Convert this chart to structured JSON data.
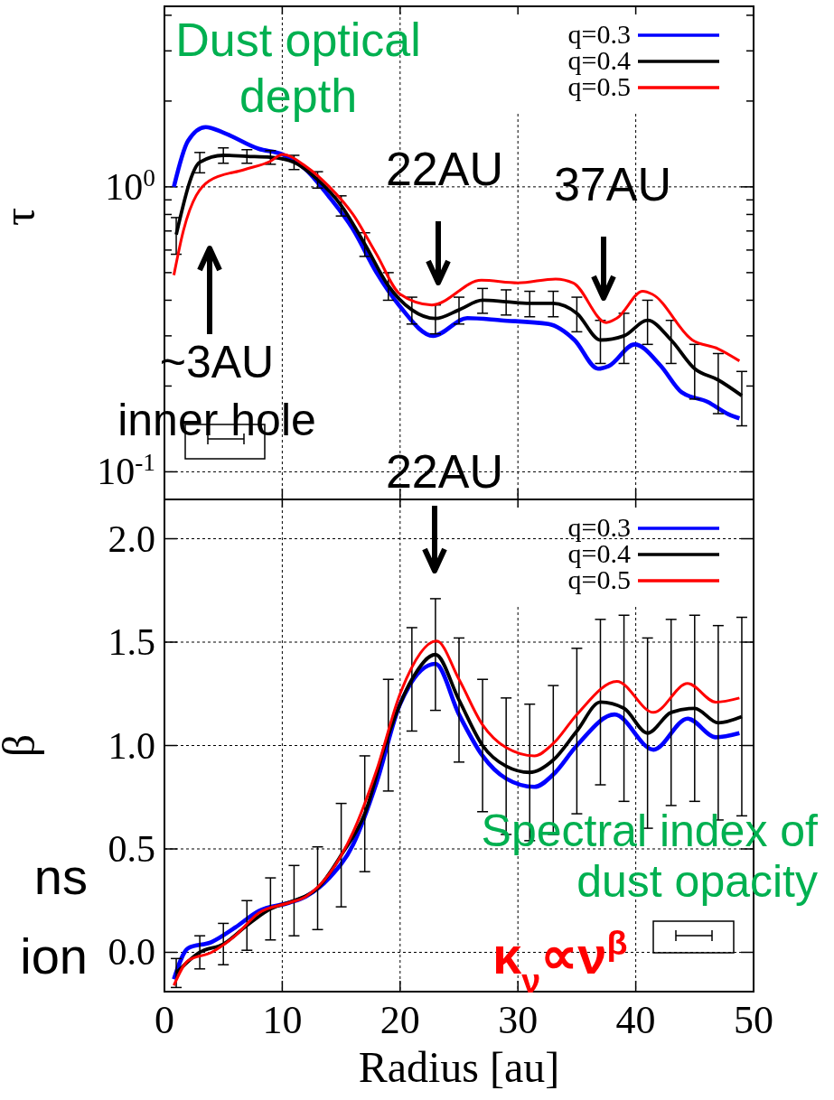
{
  "chart_data": [
    {
      "type": "line",
      "ylabel": "τ",
      "log": "y",
      "grid": true,
      "legend": "top right",
      "tick_labels": "y",
      "xlim": [
        0,
        50
      ],
      "xticks": [
        0,
        10,
        20,
        30,
        40,
        50
      ],
      "ylim": [
        0.08,
        4.3
      ],
      "yticks": [
        {
          "value": 0.1,
          "label": "10$^{-1}$"
        },
        {
          "value": 0.2,
          "label": null
        },
        {
          "value": 0.3,
          "label": null
        },
        {
          "value": 0.4,
          "label": null
        },
        {
          "value": 0.5,
          "label": null
        },
        {
          "value": 0.6,
          "label": null
        },
        {
          "value": 0.7,
          "label": null
        },
        {
          "value": 0.8,
          "label": null
        },
        {
          "value": 0.9,
          "label": null
        },
        {
          "value": 1,
          "label": "10$^{0}$"
        },
        {
          "value": 2,
          "label": null
        },
        {
          "value": 3,
          "label": null
        },
        {
          "value": 4,
          "label": null
        }
      ],
      "series": [
        {
          "name": "q=0.3",
          "color": "#0000ff",
          "x": [
            0.8,
            2,
            3.5,
            5,
            8,
            10,
            12,
            14,
            16,
            18,
            20,
            22.8,
            25.7,
            28.6,
            32.6,
            34.8,
            36.8,
            37.7,
            39.9,
            42.1,
            43.9,
            46.1,
            47.9,
            48.8
          ],
          "values": [
            1.0,
            1.45,
            1.62,
            1.55,
            1.36,
            1.3,
            1.15,
            0.92,
            0.71,
            0.5,
            0.38,
            0.3,
            0.346,
            0.34,
            0.33,
            0.29,
            0.23,
            0.235,
            0.28,
            0.236,
            0.19,
            0.176,
            0.159,
            0.154
          ]
        },
        {
          "name": "q=0.4",
          "color": "#000000",
          "x": [
            1,
            3,
            5,
            7,
            9,
            11,
            13,
            15,
            17,
            19,
            21,
            23,
            25,
            27,
            29,
            31,
            33,
            35,
            37,
            39,
            41,
            43,
            45,
            47,
            49
          ],
          "values": [
            0.68,
            1.22,
            1.29,
            1.28,
            1.27,
            1.22,
            1.06,
            0.86,
            0.63,
            0.45,
            0.37,
            0.345,
            0.37,
            0.4,
            0.395,
            0.39,
            0.39,
            0.36,
            0.29,
            0.3,
            0.34,
            0.29,
            0.23,
            0.21,
            0.185
          ],
          "errors": [
            0.1,
            0.1,
            0.08,
            0.07,
            0.07,
            0.07,
            0.07,
            0.07,
            0.06,
            0.05,
            0.04,
            0.04,
            0.04,
            0.04,
            0.04,
            0.04,
            0.04,
            0.05,
            0.05,
            0.06,
            0.06,
            0.05,
            0.05,
            0.05,
            0.04
          ]
        },
        {
          "name": "q=0.5",
          "color": "#ff0000",
          "x": [
            0.8,
            1.6,
            3.8,
            6.8,
            9,
            10,
            12,
            14,
            16,
            18,
            20,
            22.7,
            26.9,
            30,
            33.2,
            34.7,
            37.5,
            38.4,
            40.6,
            41.4,
            44.8,
            47,
            48.8
          ],
          "values": [
            0.49,
            0.7,
            1.05,
            1.15,
            1.23,
            1.3,
            1.18,
            1.0,
            0.8,
            0.58,
            0.42,
            0.385,
            0.47,
            0.46,
            0.475,
            0.46,
            0.334,
            0.346,
            0.43,
            0.42,
            0.29,
            0.27,
            0.245
          ]
        }
      ],
      "annotations": [
        "Dust optical\ndepth",
        "22AU",
        "37AU",
        "~3AU\ninner hole"
      ]
    },
    {
      "type": "line",
      "xlabel": "Radius [au]",
      "ylabel": "β",
      "grid": true,
      "legend": "top right",
      "xlim": [
        0,
        50
      ],
      "xticks": [
        0,
        10,
        20,
        30,
        40,
        50
      ],
      "ylim": [
        -0.19,
        2.19
      ],
      "yticks": [
        {
          "value": 0,
          "label": "0.0"
        },
        0.5,
        {
          "value": 1,
          "label": "1.0"
        },
        1.5,
        {
          "value": 2,
          "label": "2.0"
        }
      ],
      "series": [
        {
          "name": "q=0.3",
          "color": "#0000ff",
          "x": [
            0.8,
            2,
            4,
            6,
            8,
            10.6,
            12,
            14,
            16,
            18,
            20,
            23,
            25,
            27,
            29,
            31.4,
            33,
            35,
            38.2,
            41.5,
            44.4,
            46.8,
            48.8
          ],
          "values": [
            -0.13,
            0.02,
            0.05,
            0.12,
            0.2,
            0.24,
            0.27,
            0.36,
            0.52,
            0.82,
            1.2,
            1.395,
            1.15,
            0.95,
            0.84,
            0.8,
            0.86,
            1.0,
            1.15,
            0.98,
            1.13,
            1.04,
            1.06
          ]
        },
        {
          "name": "q=0.4",
          "color": "#000000",
          "x": [
            1,
            3,
            5,
            7,
            9,
            11,
            13,
            15,
            17,
            19,
            21,
            23,
            25,
            27,
            29,
            31,
            33,
            35,
            37,
            39,
            41,
            43,
            45,
            47,
            49
          ],
          "values": [
            -0.1,
            0.0,
            0.04,
            0.13,
            0.21,
            0.25,
            0.31,
            0.47,
            0.67,
            1.05,
            1.32,
            1.44,
            1.22,
            1.0,
            0.9,
            0.87,
            0.93,
            1.07,
            1.21,
            1.18,
            1.06,
            1.16,
            1.18,
            1.11,
            1.14
          ],
          "errors": [
            0.07,
            0.08,
            0.1,
            0.12,
            0.15,
            0.17,
            0.2,
            0.25,
            0.28,
            0.27,
            0.25,
            0.27,
            0.3,
            0.32,
            0.33,
            0.33,
            0.36,
            0.4,
            0.4,
            0.45,
            0.46,
            0.45,
            0.45,
            0.47,
            0.48
          ]
        },
        {
          "name": "q=0.5",
          "color": "#ff0000",
          "x": [
            0.8,
            2,
            4,
            6,
            8,
            10.6,
            12,
            14,
            16,
            18,
            20,
            23.1,
            25,
            27,
            29,
            31.4,
            33,
            35,
            38.4,
            41.5,
            44.4,
            46.8,
            48.8
          ],
          "values": [
            -0.16,
            -0.04,
            0.0,
            0.08,
            0.19,
            0.24,
            0.27,
            0.38,
            0.58,
            0.88,
            1.25,
            1.505,
            1.32,
            1.1,
            0.99,
            0.95,
            1.01,
            1.15,
            1.31,
            1.16,
            1.3,
            1.21,
            1.23
          ]
        }
      ],
      "annotations": [
        "22AU",
        "Spectral index of\ndust opacity",
        "κ$_{ν}$∝ν$^{β}$",
        "ns\nion"
      ]
    }
  ]
}
